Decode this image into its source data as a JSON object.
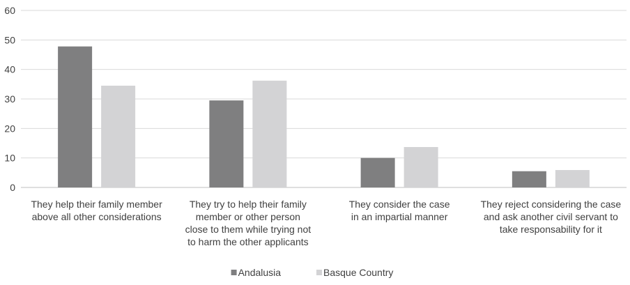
{
  "chart_data": {
    "type": "bar",
    "title": "",
    "xlabel": "",
    "ylabel": "",
    "ylim": [
      0,
      60
    ],
    "yticks": [
      0,
      10,
      20,
      30,
      40,
      50,
      60
    ],
    "grid": true,
    "legend_position": "bottom",
    "categories": [
      [
        "They help their family member",
        "above all other considerations"
      ],
      [
        "They try to help their family",
        "member or other person",
        "close to them while trying not",
        "to harm the other applicants"
      ],
      [
        "They consider the case",
        "in an impartial manner"
      ],
      [
        "They reject considering the case",
        "and ask another civil servant to",
        "take responsability for it"
      ]
    ],
    "series": [
      {
        "name": "Andalusia",
        "color": "#7f7f80",
        "values": [
          47.8,
          29.5,
          10.0,
          5.5
        ]
      },
      {
        "name": "Basque Country",
        "color": "#d3d3d5",
        "values": [
          34.5,
          36.2,
          13.7,
          5.9
        ]
      }
    ]
  }
}
